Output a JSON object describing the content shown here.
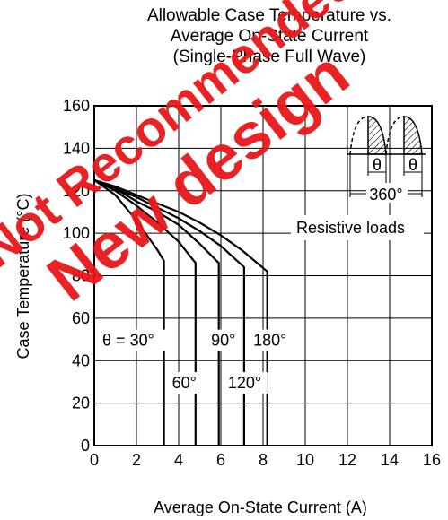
{
  "title_lines": [
    "Allowable Case Temperature vs.",
    "Average On-State Current",
    "(Single-Phase Full Wave)"
  ],
  "watermark": {
    "lines": [
      "Not Recommended for",
      "New design"
    ],
    "color": "#e8181a"
  },
  "chart_data": {
    "type": "line",
    "xlabel": "Average On-State Current  (A)",
    "ylabel": "Case Temperature  (°C)",
    "xlim": [
      0,
      16
    ],
    "ylim": [
      0,
      160
    ],
    "xticks": [
      0,
      2,
      4,
      6,
      8,
      10,
      12,
      14,
      16
    ],
    "yticks": [
      0,
      20,
      40,
      60,
      80,
      100,
      120,
      140,
      160
    ],
    "grid": true,
    "series": [
      {
        "name": "θ = 30°",
        "x": [
          0,
          1,
          2,
          3,
          3.3,
          3.3
        ],
        "y": [
          125,
          118,
          106,
          92,
          87,
          0
        ]
      },
      {
        "name": "60°",
        "x": [
          0,
          1,
          2,
          3,
          4,
          4.8,
          4.8
        ],
        "y": [
          125,
          120,
          113,
          105,
          96,
          86,
          0
        ]
      },
      {
        "name": "90°",
        "x": [
          0,
          1,
          2,
          3,
          4,
          5,
          5.9,
          5.9
        ],
        "y": [
          125,
          121,
          115,
          110,
          104,
          95,
          86,
          0
        ]
      },
      {
        "name": "120°",
        "x": [
          0,
          1,
          2,
          3,
          4,
          5,
          6,
          7.1,
          7.1
        ],
        "y": [
          125,
          121,
          117,
          112,
          107,
          101,
          94,
          84,
          0
        ]
      },
      {
        "name": "180°",
        "x": [
          0,
          1,
          2,
          3,
          4,
          5,
          6,
          7,
          8.2,
          8.2
        ],
        "y": [
          125,
          122,
          118,
          114,
          110,
          105,
          99,
          92,
          82,
          0
        ]
      }
    ],
    "series_labels": [
      {
        "text": "θ = 30°",
        "x": 0.3,
        "y": 47,
        "boxed": true
      },
      {
        "text": "60°",
        "x": 3.6,
        "y": 27,
        "boxed": true
      },
      {
        "text": "90°",
        "x": 5.45,
        "y": 47,
        "boxed": true
      },
      {
        "text": "120°",
        "x": 6.25,
        "y": 27,
        "boxed": true
      },
      {
        "text": "180°",
        "x": 7.45,
        "y": 47,
        "boxed": true
      }
    ],
    "annotations": {
      "period_label": "360°",
      "conduction_label": "θ",
      "load_label": "Resistive loads"
    }
  }
}
